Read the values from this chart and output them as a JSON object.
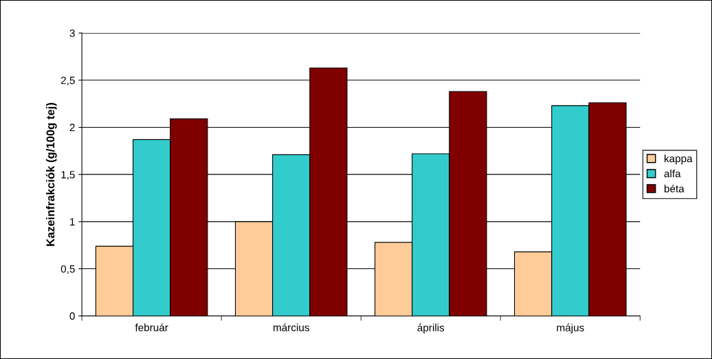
{
  "chart_data": {
    "type": "bar",
    "ylabel": "Kazeinfrakciók (g/100g tej)",
    "categories": [
      "február",
      "március",
      "április",
      "május"
    ],
    "series": [
      {
        "name": "kappa",
        "color": "#ffcc99",
        "values": [
          0.74,
          1.0,
          0.78,
          0.68
        ]
      },
      {
        "name": "alfa",
        "color": "#33cccc",
        "values": [
          1.87,
          1.71,
          1.72,
          2.23
        ]
      },
      {
        "name": "béta",
        "color": "#800000",
        "values": [
          2.09,
          2.63,
          2.38,
          2.26
        ]
      }
    ],
    "ylim": [
      0,
      3
    ],
    "yticks": [
      0,
      {
        "value": 0.5,
        "label": "0,5"
      },
      1,
      {
        "value": 1.5,
        "label": "1,5"
      },
      2,
      {
        "value": 2.5,
        "label": "2,5"
      },
      3
    ],
    "grid": "y",
    "legend": "right"
  }
}
